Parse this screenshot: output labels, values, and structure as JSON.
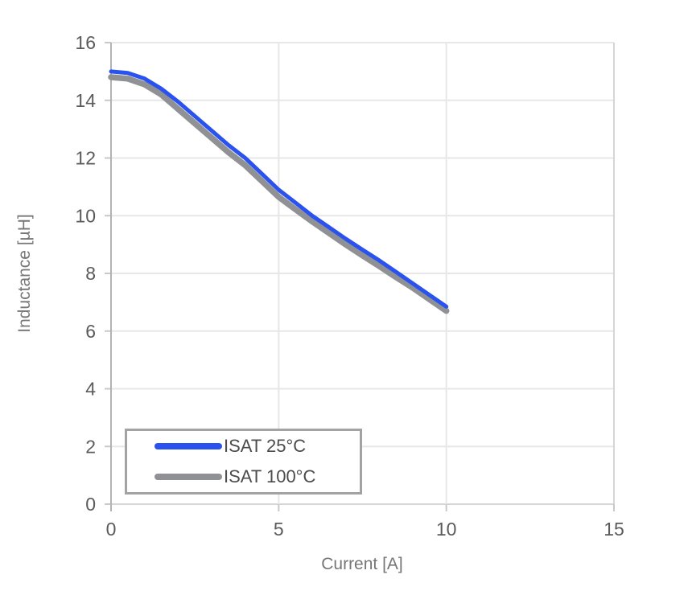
{
  "chart_data": {
    "type": "line",
    "title": "",
    "xlabel": "Current [A]",
    "ylabel": "Inductance [µH]",
    "xlim": [
      0,
      15
    ],
    "ylim": [
      0,
      16
    ],
    "x_ticks": [
      0,
      5,
      10,
      15
    ],
    "y_ticks": [
      0,
      2,
      4,
      6,
      8,
      10,
      12,
      14,
      16
    ],
    "grid": true,
    "legend_position": "inside-bottom-left",
    "x": [
      0,
      0.5,
      1,
      1.5,
      2,
      2.5,
      3,
      3.5,
      4,
      4.5,
      5,
      5.5,
      6,
      6.5,
      7,
      7.5,
      8,
      8.5,
      9,
      9.5,
      10
    ],
    "series": [
      {
        "name": "ISAT 25°C",
        "color": "#2a52ee",
        "line_width": 5,
        "values": [
          15.0,
          14.95,
          14.75,
          14.4,
          13.95,
          13.45,
          12.95,
          12.45,
          12.0,
          11.45,
          10.9,
          10.45,
          10.0,
          9.6,
          9.2,
          8.82,
          8.45,
          8.05,
          7.65,
          7.25,
          6.85
        ]
      },
      {
        "name": "ISAT 100°C",
        "color": "#8f9194",
        "line_width": 7.5,
        "values": [
          14.8,
          14.75,
          14.55,
          14.2,
          13.7,
          13.2,
          12.7,
          12.2,
          11.75,
          11.2,
          10.65,
          10.22,
          9.8,
          9.4,
          9.0,
          8.62,
          8.25,
          7.87,
          7.5,
          7.1,
          6.7
        ]
      }
    ]
  }
}
